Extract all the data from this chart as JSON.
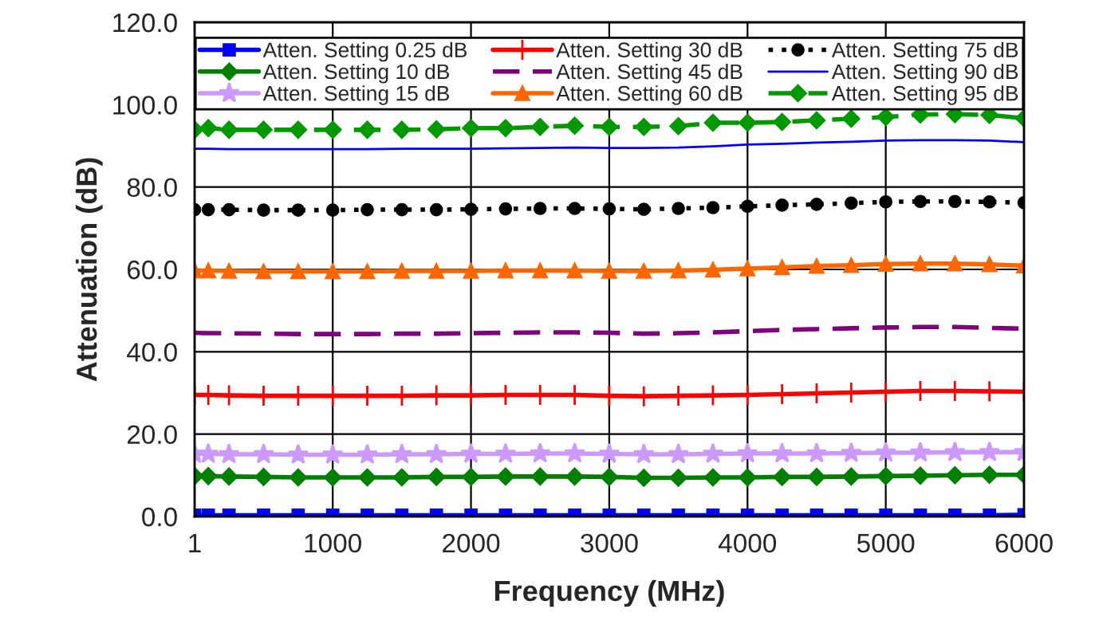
{
  "chart_data": {
    "type": "line",
    "xlabel": "Frequency (MHz)",
    "ylabel": "Attenuation (dB)",
    "x": [
      1,
      100,
      250,
      500,
      750,
      1000,
      1250,
      1500,
      1750,
      2000,
      2250,
      2500,
      2750,
      3000,
      3250,
      3500,
      3750,
      4000,
      4250,
      4500,
      4750,
      5000,
      5250,
      5500,
      5750,
      6000
    ],
    "series": [
      {
        "name": "Atten. Setting 0.25 dB",
        "color": "#0000ff",
        "marker": "square",
        "line_style": "solid",
        "values": [
          0.3,
          0.3,
          0.3,
          0.3,
          0.3,
          0.3,
          0.3,
          0.3,
          0.3,
          0.3,
          0.3,
          0.3,
          0.3,
          0.3,
          0.3,
          0.3,
          0.3,
          0.3,
          0.3,
          0.3,
          0.3,
          0.3,
          0.3,
          0.3,
          0.3,
          0.4
        ]
      },
      {
        "name": "Atten. Setting 10 dB",
        "color": "#008000",
        "marker": "diamond",
        "line_style": "solid",
        "values": [
          9.8,
          9.8,
          9.7,
          9.6,
          9.5,
          9.5,
          9.5,
          9.5,
          9.6,
          9.6,
          9.7,
          9.7,
          9.7,
          9.6,
          9.4,
          9.4,
          9.5,
          9.5,
          9.6,
          9.6,
          9.7,
          9.8,
          9.9,
          10.0,
          10.1,
          10.1
        ]
      },
      {
        "name": "Atten. Setting 15 dB",
        "color": "#cc99ff",
        "marker": "star",
        "line_style": "solid",
        "values": [
          15.2,
          15.2,
          15.1,
          15.1,
          15.0,
          15.0,
          15.0,
          15.1,
          15.1,
          15.2,
          15.2,
          15.3,
          15.3,
          15.2,
          15.1,
          15.1,
          15.2,
          15.3,
          15.3,
          15.3,
          15.4,
          15.5,
          15.5,
          15.6,
          15.6,
          15.6
        ]
      },
      {
        "name": "Atten. Setting 30 dB",
        "color": "#ff0000",
        "marker": "cross",
        "line_style": "solid",
        "values": [
          29.5,
          29.5,
          29.4,
          29.3,
          29.3,
          29.3,
          29.3,
          29.3,
          29.4,
          29.4,
          29.5,
          29.5,
          29.5,
          29.3,
          29.2,
          29.3,
          29.4,
          29.5,
          29.7,
          29.9,
          30.1,
          30.3,
          30.5,
          30.5,
          30.4,
          30.3
        ]
      },
      {
        "name": "Atten. Setting 45 dB",
        "color": "#800080",
        "marker": "none",
        "line_style": "dashed",
        "values": [
          44.6,
          44.5,
          44.5,
          44.4,
          44.3,
          44.3,
          44.3,
          44.4,
          44.4,
          44.5,
          44.6,
          44.7,
          44.7,
          44.6,
          44.4,
          44.5,
          44.7,
          45.0,
          45.3,
          45.5,
          45.7,
          45.9,
          46.0,
          46.0,
          45.8,
          45.6
        ]
      },
      {
        "name": "Atten. Setting 60 dB",
        "color": "#ff6600",
        "marker": "triangle",
        "line_style": "solid",
        "values": [
          59.7,
          59.7,
          59.6,
          59.5,
          59.5,
          59.5,
          59.5,
          59.6,
          59.6,
          59.6,
          59.7,
          59.7,
          59.7,
          59.6,
          59.6,
          59.7,
          59.9,
          60.2,
          60.5,
          60.8,
          61.0,
          61.3,
          61.4,
          61.4,
          61.2,
          60.9
        ]
      },
      {
        "name": "Atten. Setting 75 dB",
        "color": "#000000",
        "marker": "circle",
        "line_style": "dotted",
        "values": [
          74.5,
          74.5,
          74.5,
          74.4,
          74.4,
          74.4,
          74.5,
          74.5,
          74.5,
          74.6,
          74.7,
          74.8,
          74.8,
          74.7,
          74.6,
          74.8,
          75.0,
          75.3,
          75.6,
          75.8,
          76.1,
          76.4,
          76.5,
          76.5,
          76.4,
          76.2
        ]
      },
      {
        "name": "Atten. Setting 90 dB",
        "color": "#0000ff",
        "marker": "none",
        "line_style": "solid",
        "values": [
          89.3,
          89.3,
          89.2,
          89.2,
          89.2,
          89.2,
          89.2,
          89.3,
          89.3,
          89.3,
          89.4,
          89.5,
          89.6,
          89.5,
          89.5,
          89.6,
          89.9,
          90.3,
          90.5,
          90.8,
          91.0,
          91.3,
          91.4,
          91.4,
          91.3,
          90.9
        ]
      },
      {
        "name": "Atten. Setting 95 dB",
        "color": "#009900",
        "marker": "diamond",
        "line_style": "dashed",
        "values": [
          93.9,
          94.3,
          93.9,
          93.9,
          93.9,
          93.9,
          93.9,
          93.9,
          94.0,
          94.3,
          94.3,
          94.6,
          94.9,
          94.6,
          94.6,
          94.8,
          95.6,
          95.6,
          95.8,
          96.2,
          96.6,
          97.0,
          97.6,
          97.7,
          97.5,
          96.7
        ]
      }
    ],
    "xlim": [
      1,
      6000
    ],
    "xticks": [
      1,
      1000,
      2000,
      3000,
      4000,
      5000,
      6000
    ],
    "ylim": [
      0,
      120
    ],
    "yticks": [
      {
        "value": 0,
        "label": "0.0"
      },
      {
        "value": 20,
        "label": "20.0"
      },
      {
        "value": 40,
        "label": "40.0"
      },
      {
        "value": 60,
        "label": "60.0"
      },
      {
        "value": 80,
        "label": "80.0"
      },
      {
        "value": 100,
        "label": "100.0"
      },
      {
        "value": 120,
        "label": "120.0"
      }
    ],
    "grid": true,
    "legend": "top"
  }
}
